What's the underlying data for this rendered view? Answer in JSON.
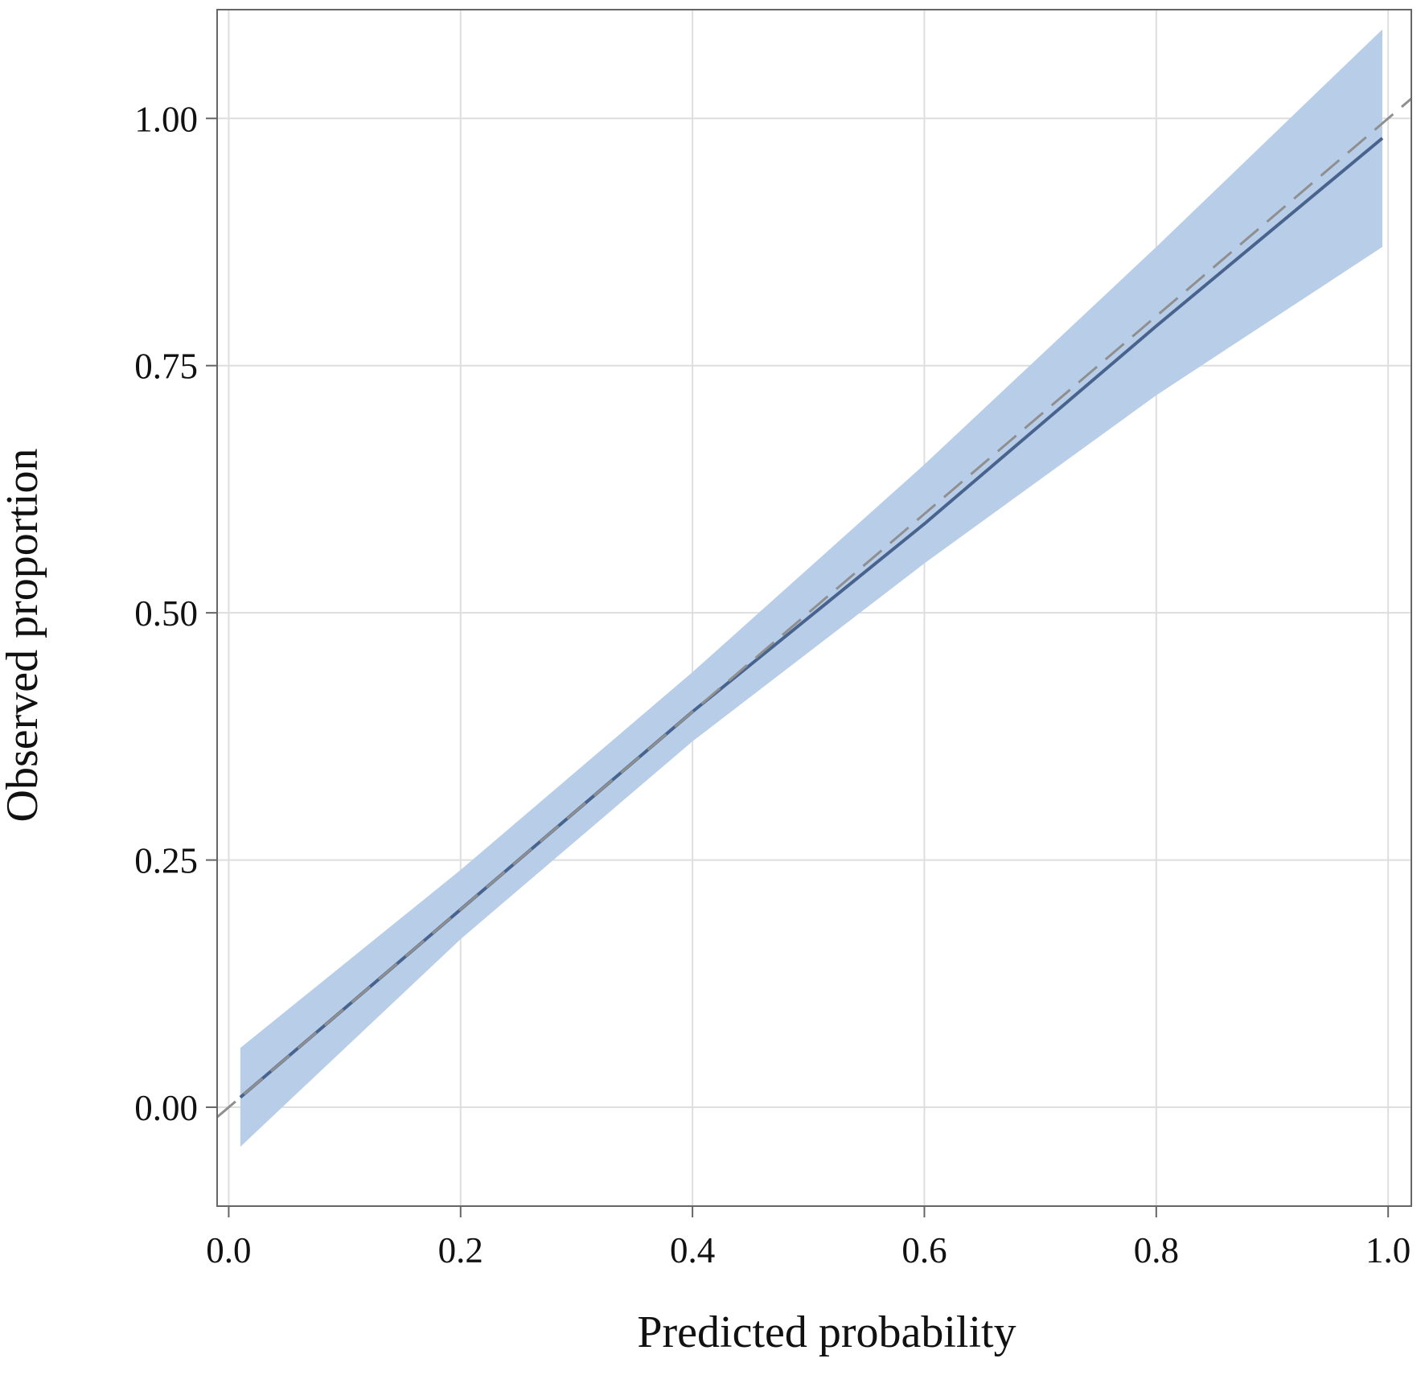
{
  "chart_data": {
    "type": "line",
    "title": "",
    "xlabel": "Predicted probability",
    "ylabel": "Observed proportion",
    "xlim": [
      -0.01,
      1.02
    ],
    "ylim": [
      -0.1,
      1.11
    ],
    "grid": true,
    "xticks": [
      0.0,
      0.2,
      0.4,
      0.6,
      0.8,
      1.0
    ],
    "xtick_labels": [
      "0.0",
      "0.2",
      "0.4",
      "0.6",
      "0.8",
      "1.0"
    ],
    "yticks": [
      0.0,
      0.25,
      0.5,
      0.75,
      1.0
    ],
    "ytick_labels": [
      "0.00",
      "0.25",
      "0.50",
      "0.75",
      "1.00"
    ],
    "colors": {
      "band": "#b8cde7",
      "line": "#48648e",
      "reference": "#8f8f8f",
      "grid": "#dedede",
      "frame": "#666666"
    },
    "series": [
      {
        "role": "calibration",
        "style": "solid",
        "x": [
          0.01,
          0.2,
          0.4,
          0.6,
          0.8,
          0.995
        ],
        "y": [
          0.01,
          0.2,
          0.4,
          0.59,
          0.79,
          0.98
        ]
      },
      {
        "role": "reference",
        "style": "dashed",
        "x": [
          -0.01,
          1.02
        ],
        "y": [
          -0.01,
          1.02
        ]
      }
    ],
    "band": {
      "x": [
        0.01,
        0.2,
        0.4,
        0.6,
        0.8,
        0.995
      ],
      "lower": [
        -0.04,
        0.17,
        0.37,
        0.55,
        0.72,
        0.87
      ],
      "upper": [
        0.06,
        0.24,
        0.44,
        0.65,
        0.87,
        1.09
      ]
    }
  }
}
